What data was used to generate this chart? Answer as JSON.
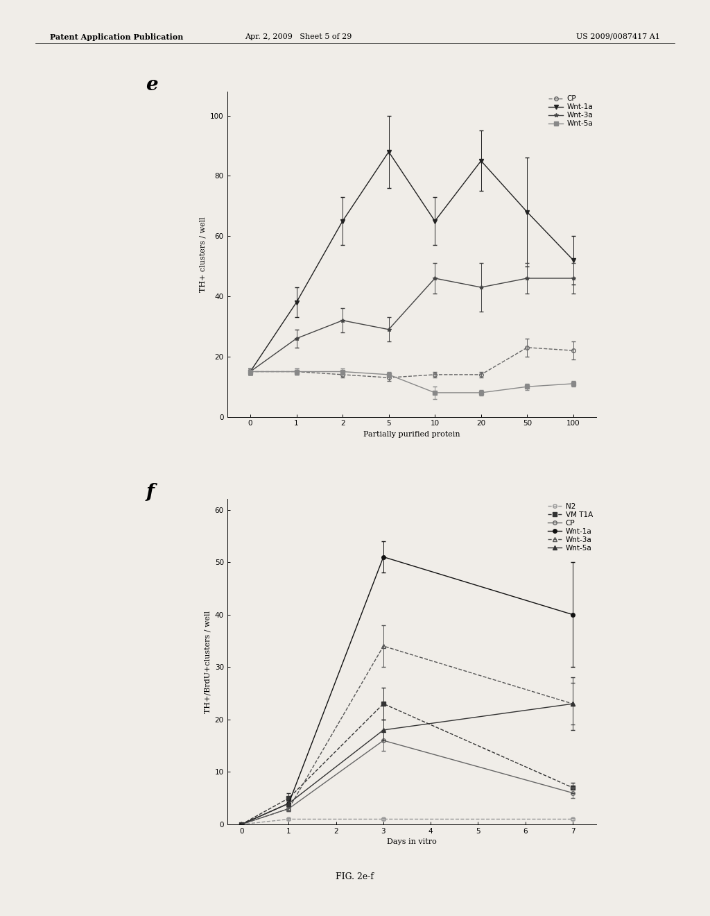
{
  "fig_label_e": "e",
  "fig_label_f": "f",
  "fig_caption": "FIG. 2e-f",
  "header_text_left": "Patent Application Publication",
  "header_text_mid": "Apr. 2, 2009   Sheet 5 of 29",
  "header_text_right": "US 2009/0087417 A1",
  "plot_e": {
    "xlabel": "Partially purified protein",
    "ylabel": "TH+ clusters / well",
    "xlim": [
      -0.5,
      7.5
    ],
    "ylim": [
      0,
      108
    ],
    "xticks": [
      0,
      1,
      2,
      3,
      4,
      5,
      6,
      7
    ],
    "xticklabels": [
      "0",
      "1",
      "2",
      "5",
      "10",
      "20",
      "50",
      "100"
    ],
    "yticks": [
      0,
      20,
      40,
      60,
      80,
      100
    ],
    "series": {
      "CP": {
        "x": [
          0,
          1,
          2,
          3,
          4,
          5,
          6,
          7
        ],
        "y": [
          15,
          15,
          14,
          13,
          14,
          14,
          23,
          22
        ],
        "yerr": [
          1,
          1,
          1,
          1,
          1,
          1,
          3,
          3
        ],
        "marker": "o",
        "linestyle": "--",
        "color": "#666666",
        "fillstyle": "none"
      },
      "Wnt-1a": {
        "x": [
          0,
          1,
          2,
          3,
          4,
          5,
          6,
          7
        ],
        "y": [
          15,
          38,
          65,
          88,
          65,
          85,
          68,
          52
        ],
        "yerr": [
          1,
          5,
          8,
          12,
          8,
          10,
          18,
          8
        ],
        "marker": "v",
        "linestyle": "-",
        "color": "#222222",
        "fillstyle": "full"
      },
      "Wnt-3a": {
        "x": [
          0,
          1,
          2,
          3,
          4,
          5,
          6,
          7
        ],
        "y": [
          15,
          26,
          32,
          29,
          46,
          43,
          46,
          46
        ],
        "yerr": [
          1,
          3,
          4,
          4,
          5,
          8,
          5,
          5
        ],
        "marker": "*",
        "linestyle": "-",
        "color": "#444444",
        "fillstyle": "full"
      },
      "Wnt-5a": {
        "x": [
          0,
          1,
          2,
          3,
          4,
          5,
          6,
          7
        ],
        "y": [
          15,
          15,
          15,
          14,
          8,
          8,
          10,
          11
        ],
        "yerr": [
          1,
          1,
          1,
          1,
          2,
          1,
          1,
          1
        ],
        "marker": "s",
        "linestyle": "-",
        "color": "#888888",
        "fillstyle": "full"
      }
    }
  },
  "plot_f": {
    "xlabel": "Days in vitro",
    "ylabel": "TH+/BrdU+clusters / well",
    "xlim": [
      -0.3,
      7.5
    ],
    "ylim": [
      0,
      62
    ],
    "xticks": [
      0,
      1,
      2,
      3,
      4,
      5,
      6,
      7
    ],
    "xticklabels": [
      "0",
      "1",
      "2",
      "3",
      "4",
      "5",
      "6",
      "7"
    ],
    "yticks": [
      0,
      10,
      20,
      30,
      40,
      50,
      60
    ],
    "series": {
      "N2": {
        "x": [
          0,
          1,
          3,
          7
        ],
        "y": [
          0,
          1,
          1,
          1
        ],
        "yerr": [
          0,
          0.2,
          0.2,
          0.2
        ],
        "marker": "o",
        "linestyle": "--",
        "color": "#999999",
        "fillstyle": "none"
      },
      "VM T1A": {
        "x": [
          0,
          1,
          3,
          7
        ],
        "y": [
          0,
          5,
          23,
          7
        ],
        "yerr": [
          0,
          1,
          3,
          1
        ],
        "marker": "s",
        "linestyle": "--",
        "color": "#333333",
        "fillstyle": "full"
      },
      "CP": {
        "x": [
          0,
          1,
          3,
          7
        ],
        "y": [
          0,
          3,
          16,
          6
        ],
        "yerr": [
          0,
          0.5,
          2,
          1
        ],
        "marker": "o",
        "linestyle": "-",
        "color": "#666666",
        "fillstyle": "none"
      },
      "Wnt-1a": {
        "x": [
          0,
          1,
          3,
          7
        ],
        "y": [
          0,
          4,
          51,
          40
        ],
        "yerr": [
          0,
          0.5,
          3,
          10
        ],
        "marker": "o",
        "linestyle": "-",
        "color": "#111111",
        "fillstyle": "full"
      },
      "Wnt-3a": {
        "x": [
          0,
          1,
          3,
          7
        ],
        "y": [
          0,
          3,
          34,
          23
        ],
        "yerr": [
          0,
          0.5,
          4,
          4
        ],
        "marker": "^",
        "linestyle": "--",
        "color": "#555555",
        "fillstyle": "none"
      },
      "Wnt-5a": {
        "x": [
          0,
          1,
          3,
          7
        ],
        "y": [
          0,
          4,
          18,
          23
        ],
        "yerr": [
          0,
          0.5,
          2,
          5
        ],
        "marker": "^",
        "linestyle": "-",
        "color": "#333333",
        "fillstyle": "full"
      }
    }
  },
  "bg_color": "#f0ede8",
  "plot_bg": "#f0ede8",
  "text_color": "#000000",
  "font_size": 8,
  "tick_font_size": 7.5
}
